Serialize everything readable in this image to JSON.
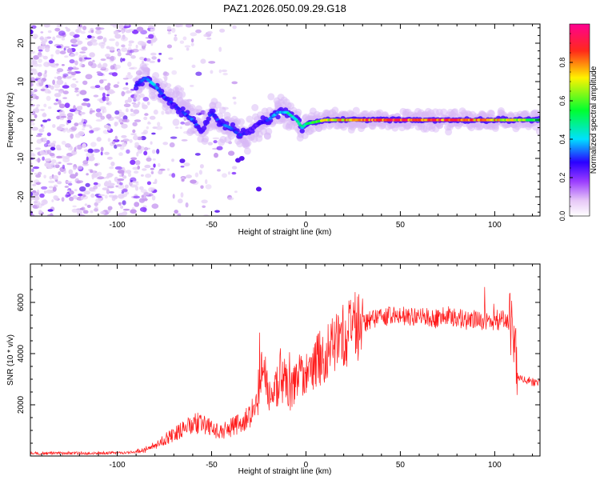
{
  "figure_title": "PAZ1.2026.050.09.29.G18",
  "colors": {
    "snr_line": "#ff1a1a",
    "colormap": [
      "#ffffff",
      "#dcc8f5",
      "#b27af0",
      "#7a2bff",
      "#1a00ff",
      "#00e5ff",
      "#00ff44",
      "#fff000",
      "#ff2020",
      "#ff0090"
    ]
  },
  "chart_data": [
    {
      "type": "heatmap",
      "title": "PAZ1.2026.050.09.29.G18",
      "xlabel": "Height of straight line (km)",
      "ylabel": "Frequency (Hz)",
      "xlim": [
        -146,
        124
      ],
      "ylim": [
        -25,
        25
      ],
      "xticks": [
        -100,
        -50,
        0,
        50,
        100
      ],
      "yticks": [
        -20,
        -10,
        0,
        10,
        20
      ],
      "xtick_labels": [
        "-100",
        "-50",
        "0",
        "50",
        "100"
      ],
      "ytick_labels": [
        "-20",
        "-10",
        "0",
        "10",
        "20"
      ],
      "ridge": {
        "x": [
          -90,
          -85,
          -80,
          -75,
          -70,
          -65,
          -60,
          -55,
          -50,
          -45,
          -40,
          -35,
          -30,
          -25,
          -20,
          -15,
          -10,
          -5,
          -2,
          0,
          10,
          20,
          30,
          40,
          50,
          60,
          70,
          80,
          90,
          100,
          110,
          120
        ],
        "y": [
          9,
          11,
          9,
          6,
          4,
          2,
          0,
          -3,
          2,
          -1,
          -2,
          -4,
          -3,
          -1,
          0,
          2,
          2,
          0,
          -2,
          -1,
          0,
          0,
          0,
          0,
          0,
          0,
          0,
          0,
          0,
          0,
          0,
          0
        ],
        "amplitude": [
          0.3,
          0.35,
          0.4,
          0.3,
          0.28,
          0.3,
          0.35,
          0.28,
          0.3,
          0.32,
          0.35,
          0.3,
          0.25,
          0.28,
          0.35,
          0.4,
          0.45,
          0.5,
          0.45,
          0.55,
          0.7,
          0.8,
          0.85,
          0.9,
          0.9,
          0.88,
          0.9,
          0.85,
          0.8,
          0.78,
          0.7,
          0.6
        ]
      },
      "colorbar": {
        "label": "Normalized spectral amplitude",
        "range": [
          0,
          1
        ],
        "ticks": [
          0.0,
          0.2,
          0.4,
          0.6,
          0.8
        ],
        "tick_labels": [
          "0.0",
          "0.2",
          "0.4",
          "0.6",
          "0.8"
        ]
      }
    },
    {
      "type": "line",
      "xlabel": "Height of straight line (km)",
      "ylabel": "SNR (10 * v/v)",
      "xlim": [
        -146,
        124
      ],
      "ylim": [
        0,
        7500
      ],
      "xticks": [
        -100,
        -50,
        0,
        50,
        100
      ],
      "yticks": [
        2000,
        4000,
        6000
      ],
      "xtick_labels": [
        "-100",
        "-50",
        "0",
        "50",
        "100"
      ],
      "ytick_labels": [
        "2000",
        "4000",
        "6000"
      ],
      "series": [
        {
          "name": "SNR",
          "x": [
            -146,
            -100,
            -90,
            -85,
            -80,
            -75,
            -70,
            -65,
            -60,
            -55,
            -50,
            -45,
            -40,
            -35,
            -30,
            -25,
            -23,
            -20,
            -15,
            -12,
            -10,
            -8,
            -5,
            0,
            5,
            10,
            15,
            20,
            25,
            30,
            35,
            40,
            45,
            50,
            55,
            60,
            65,
            70,
            75,
            80,
            85,
            90,
            95,
            100,
            105,
            108,
            110,
            112,
            115,
            120,
            124
          ],
          "y": [
            100,
            120,
            150,
            250,
            450,
            650,
            850,
            1050,
            1250,
            1300,
            1050,
            950,
            1100,
            1300,
            1500,
            2200,
            3500,
            2500,
            2600,
            3000,
            2800,
            2500,
            3000,
            3300,
            3600,
            4000,
            4300,
            4600,
            4900,
            5200,
            5300,
            5400,
            5450,
            5500,
            5400,
            5450,
            5400,
            5350,
            5500,
            5400,
            5300,
            5350,
            5250,
            5200,
            5400,
            5100,
            5000,
            3100,
            2950,
            2900,
            2900
          ]
        }
      ]
    }
  ]
}
